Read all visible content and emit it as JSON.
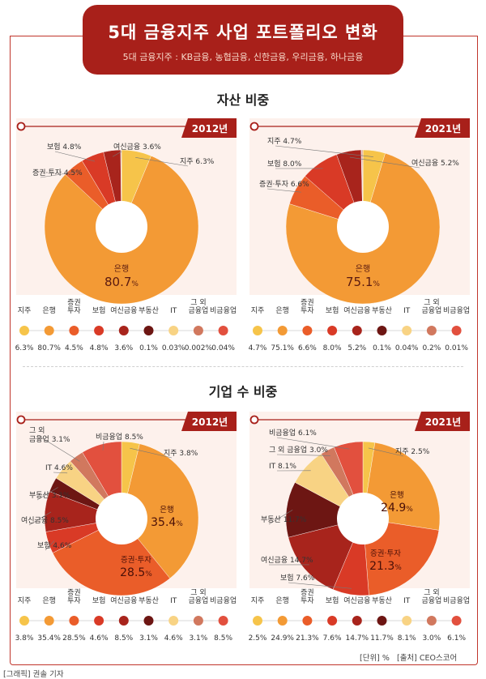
{
  "header": {
    "title": "5대 금융지주 사업 포트폴리오 변화",
    "subtitle": "5대 금융지주 : KB금융, 농협금융, 신한금융, 우리금융, 하나금융"
  },
  "sections": {
    "asset_title": "자산 비중",
    "company_title": "기업 수 비중"
  },
  "footer": {
    "unit": "[단위] %",
    "source": "[출처] CEO스코어",
    "credit": "[그래픽] 권솔 기자"
  },
  "categories": [
    "지주",
    "은행",
    "증권·투자",
    "보험",
    "여신금융",
    "부동산",
    "IT",
    "그 외 금융업",
    "비금융업"
  ],
  "colors": [
    "#f6c44a",
    "#f39a35",
    "#ea5d29",
    "#d93a26",
    "#a8241c",
    "#6d1613",
    "#f8d384",
    "#d1785e",
    "#e2503e"
  ],
  "chart_data": [
    {
      "type": "pie",
      "title": "자산 비중",
      "year": "2012년",
      "categories": [
        "지주",
        "은행",
        "증권·투자",
        "보험",
        "여신금융",
        "부동산",
        "IT",
        "그 외 금융업",
        "비금융업"
      ],
      "values": [
        6.3,
        80.7,
        4.5,
        4.8,
        3.6,
        0.1,
        0.03,
        0.002,
        0.04
      ],
      "value_labels": [
        "6.3%",
        "80.7%",
        "4.5%",
        "4.8%",
        "3.6%",
        "0.1%",
        "0.03%",
        "0.002%",
        "0.04%"
      ],
      "callouts": [
        {
          "cat": 0,
          "text": "지주 6.3%"
        },
        {
          "cat": 3,
          "text": "보험 4.8%"
        },
        {
          "cat": 4,
          "text": "여신금융 3.6%"
        },
        {
          "cat": 2,
          "text": "증권·투자 4.5%"
        }
      ],
      "big": {
        "cat": 1,
        "name": "은행",
        "num": "80.7",
        "unit": "%"
      }
    },
    {
      "type": "pie",
      "title": "자산 비중",
      "year": "2021년",
      "categories": [
        "지주",
        "은행",
        "증권·투자",
        "보험",
        "여신금융",
        "부동산",
        "IT",
        "그 외 금융업",
        "비금융업"
      ],
      "values": [
        4.7,
        75.1,
        6.6,
        8.0,
        5.2,
        0.1,
        0.04,
        0.2,
        0.01
      ],
      "value_labels": [
        "4.7%",
        "75.1%",
        "6.6%",
        "8.0%",
        "5.2%",
        "0.1%",
        "0.04%",
        "0.2%",
        "0.01%"
      ],
      "callouts": [
        {
          "cat": 4,
          "text": "여신금융 5.2%"
        },
        {
          "cat": 0,
          "text": "지주 4.7%"
        },
        {
          "cat": 3,
          "text": "보험 8.0%"
        },
        {
          "cat": 2,
          "text": "증권·투자 6.6%"
        }
      ],
      "big": {
        "cat": 1,
        "name": "은행",
        "num": "75.1",
        "unit": "%"
      }
    },
    {
      "type": "pie",
      "title": "기업 수 비중",
      "year": "2012년",
      "categories": [
        "지주",
        "은행",
        "증권·투자",
        "보험",
        "여신금융",
        "부동산",
        "IT",
        "그 외 금융업",
        "비금융업"
      ],
      "values": [
        3.8,
        35.4,
        28.5,
        4.6,
        8.5,
        3.1,
        4.6,
        3.1,
        8.5
      ],
      "value_labels": [
        "3.8%",
        "35.4%",
        "28.5%",
        "4.6%",
        "8.5%",
        "3.1%",
        "4.6%",
        "3.1%",
        "8.5%"
      ],
      "callouts": [
        {
          "cat": 7,
          "text": "그 외 금융업 3.1%"
        },
        {
          "cat": 8,
          "text": "비금융업 8.5%"
        },
        {
          "cat": 0,
          "text": "지주 3.8%"
        },
        {
          "cat": 6,
          "text": "IT 4.6%"
        },
        {
          "cat": 5,
          "text": "부동산 3.1%"
        },
        {
          "cat": 4,
          "text": "여신금융 8.5%"
        },
        {
          "cat": 3,
          "text": "보험 4.6%"
        }
      ],
      "inside": [
        {
          "cat": 1,
          "name": "은행",
          "num": "35.4",
          "unit": "%"
        },
        {
          "cat": 2,
          "name": "증권·투자",
          "num": "28.5",
          "unit": "%"
        }
      ]
    },
    {
      "type": "pie",
      "title": "기업 수 비중",
      "year": "2021년",
      "categories": [
        "지주",
        "은행",
        "증권·투자",
        "보험",
        "여신금융",
        "부동산",
        "IT",
        "그 외 금융업",
        "비금융업"
      ],
      "values": [
        2.5,
        24.9,
        21.3,
        7.6,
        14.7,
        11.7,
        8.1,
        3.0,
        6.1
      ],
      "value_labels": [
        "2.5%",
        "24.9%",
        "21.3%",
        "7.6%",
        "14.7%",
        "11.7%",
        "8.1%",
        "3.0%",
        "6.1%"
      ],
      "callouts": [
        {
          "cat": 8,
          "text": "비금융업 6.1%"
        },
        {
          "cat": 7,
          "text": "그 외 금융업 3.0%"
        },
        {
          "cat": 0,
          "text": "지주 2.5%"
        },
        {
          "cat": 6,
          "text": "IT 8.1%"
        },
        {
          "cat": 5,
          "text": "부동산 11.7%"
        },
        {
          "cat": 4,
          "text": "여신금융 14.7%"
        },
        {
          "cat": 3,
          "text": "보험 7.6%"
        }
      ],
      "inside": [
        {
          "cat": 1,
          "name": "은행",
          "num": "24.9",
          "unit": "%"
        },
        {
          "cat": 2,
          "name": "증권·투자",
          "num": "21.3",
          "unit": "%"
        }
      ]
    }
  ]
}
